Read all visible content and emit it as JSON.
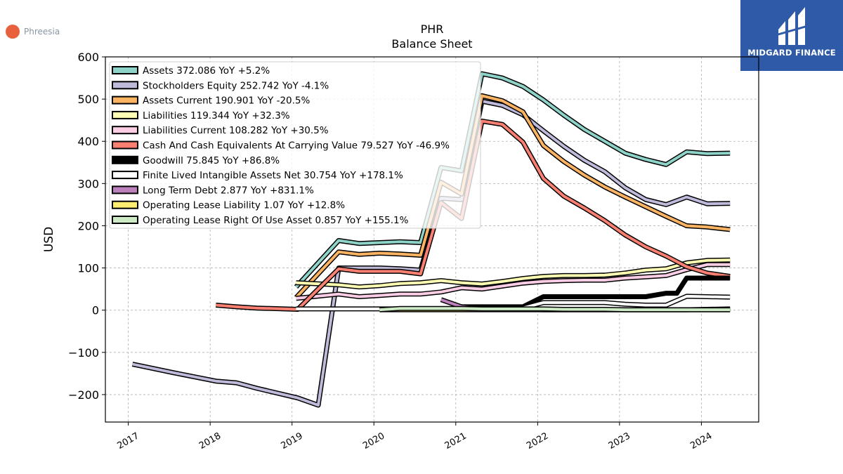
{
  "brand": {
    "left_name": "Phreesia",
    "right_name": "MIDGARD FINANCE",
    "left_color": "#e8603c",
    "right_bg": "#2f5aa8"
  },
  "chart_data": {
    "type": "line",
    "title": "PHR",
    "subtitle": "Balance  Sheet",
    "xlabel": "",
    "ylabel": "USD",
    "xlim": [
      2016.72,
      2024.7
    ],
    "ylim": [
      -265,
      600
    ],
    "yticks": [
      -200,
      -100,
      0,
      100,
      200,
      300,
      400,
      500,
      600
    ],
    "ytick_labels": [
      "−200",
      "−100",
      "0",
      "100",
      "200",
      "300",
      "400",
      "500",
      "600"
    ],
    "xticks": [
      2017,
      2018,
      2019,
      2020,
      2021,
      2022,
      2023,
      2024
    ],
    "xtick_labels": [
      "2017",
      "2018",
      "2019",
      "2020",
      "2021",
      "2022",
      "2023",
      "2024"
    ],
    "grid": true,
    "legend_position": "top-left",
    "series": [
      {
        "name": "Assets  372.086 YoY +5.2%",
        "color": "#8dd3c7",
        "x": [
          2019.05,
          2019.57,
          2019.82,
          2020.07,
          2020.32,
          2020.57,
          2020.82,
          2021.07,
          2021.32,
          2021.57,
          2021.82,
          2022.07,
          2022.32,
          2022.57,
          2022.82,
          2023.07,
          2023.32,
          2023.57,
          2023.82,
          2024.07,
          2024.35
        ],
        "y": [
          55,
          165,
          158,
          160,
          162,
          160,
          338,
          330,
          560,
          550,
          530,
          498,
          462,
          428,
          400,
          372,
          357,
          345,
          375,
          371,
          372
        ]
      },
      {
        "name": "Stockholders Equity  252.742 YoY -4.1%",
        "color": "#bebada",
        "x": [
          2017.05,
          2017.55,
          2018.07,
          2018.32,
          2018.57,
          2019.07,
          2019.32,
          2019.57,
          2019.82,
          2020.07,
          2020.32,
          2020.57,
          2020.82,
          2021.07,
          2021.32,
          2021.57,
          2021.82,
          2022.07,
          2022.32,
          2022.57,
          2022.82,
          2023.07,
          2023.32,
          2023.57,
          2023.82,
          2024.07,
          2024.35
        ],
        "y": [
          -128,
          -148,
          -168,
          -172,
          -185,
          -208,
          -225,
          100,
          100,
          100,
          98,
          95,
          265,
          262,
          495,
          485,
          463,
          425,
          388,
          355,
          328,
          290,
          262,
          250,
          268,
          252,
          253
        ]
      },
      {
        "name": "Assets Current  190.901 YoY -20.5%",
        "color": "#fdb462",
        "x": [
          2019.05,
          2019.57,
          2019.82,
          2020.07,
          2020.32,
          2020.57,
          2020.82,
          2021.07,
          2021.32,
          2021.57,
          2021.82,
          2022.07,
          2022.32,
          2022.57,
          2022.82,
          2023.07,
          2023.32,
          2023.57,
          2023.82,
          2024.07,
          2024.35
        ],
        "y": [
          30,
          138,
          132,
          135,
          133,
          130,
          303,
          275,
          508,
          496,
          470,
          390,
          352,
          320,
          292,
          268,
          245,
          222,
          200,
          197,
          191
        ]
      },
      {
        "name": "Liabilities  119.344 YoY +32.3%",
        "color": "#ffffb3",
        "x": [
          2019.05,
          2019.57,
          2019.82,
          2020.07,
          2020.32,
          2020.57,
          2020.82,
          2021.07,
          2021.32,
          2021.57,
          2021.82,
          2022.07,
          2022.32,
          2022.57,
          2022.82,
          2023.07,
          2023.32,
          2023.57,
          2023.82,
          2024.07,
          2024.35
        ],
        "y": [
          65,
          60,
          55,
          58,
          63,
          65,
          70,
          65,
          62,
          68,
          75,
          80,
          82,
          82,
          83,
          88,
          95,
          98,
          112,
          118,
          119
        ]
      },
      {
        "name": "Liabilities Current  108.282 YoY +30.5%",
        "color": "#fccde5",
        "x": [
          2019.05,
          2019.57,
          2019.82,
          2020.07,
          2020.32,
          2020.57,
          2020.82,
          2021.07,
          2021.32,
          2021.57,
          2021.82,
          2022.07,
          2022.32,
          2022.57,
          2022.82,
          2023.07,
          2023.32,
          2023.57,
          2023.82,
          2024.07,
          2024.35
        ],
        "y": [
          28,
          38,
          32,
          35,
          38,
          38,
          43,
          53,
          50,
          57,
          64,
          68,
          70,
          71,
          71,
          76,
          79,
          82,
          96,
          108,
          108
        ]
      },
      {
        "name": "Cash And Cash Equivalents At Carrying Value  79.527 YoY -46.9%",
        "color": "#fb8072",
        "x": [
          2018.07,
          2018.32,
          2018.57,
          2019.07,
          2019.57,
          2019.82,
          2020.07,
          2020.32,
          2020.57,
          2020.82,
          2021.07,
          2021.32,
          2021.57,
          2021.82,
          2022.07,
          2022.32,
          2022.57,
          2022.82,
          2023.07,
          2023.32,
          2023.57,
          2023.82,
          2024.07,
          2024.35
        ],
        "y": [
          12,
          8,
          5,
          2,
          98,
          92,
          92,
          92,
          86,
          255,
          217,
          448,
          440,
          398,
          312,
          270,
          242,
          212,
          178,
          150,
          128,
          103,
          88,
          80
        ]
      },
      {
        "name": "Goodwill  75.845 YoY +86.8%",
        "color": "#000000",
        "x": [
          2021.07,
          2021.32,
          2021.57,
          2021.82,
          2022.07,
          2022.32,
          2022.57,
          2022.82,
          2023.07,
          2023.32,
          2023.57,
          2023.7,
          2023.82,
          2024.07,
          2024.35
        ],
        "y": [
          8,
          8,
          8,
          8,
          32,
          32,
          32,
          32,
          32,
          32,
          40,
          40,
          76,
          76,
          76
        ]
      },
      {
        "name": "Finite Lived Intangible Assets Net  30.754 YoY +178.1%",
        "color": "#ffffff",
        "x": [
          2019.05,
          2019.57,
          2019.82,
          2020.07,
          2020.32,
          2020.57,
          2020.82,
          2021.07,
          2021.32,
          2021.57,
          2021.82,
          2022.07,
          2022.32,
          2022.57,
          2022.82,
          2023.07,
          2023.32,
          2023.57,
          2023.82,
          2024.07,
          2024.35
        ],
        "y": [
          3,
          3,
          3,
          3,
          3,
          3,
          3,
          5,
          5,
          5,
          5,
          18,
          18,
          18,
          18,
          14,
          12,
          12,
          33,
          32,
          31
        ]
      },
      {
        "name": "Long Term Debt  2.877 YoY +831.1%",
        "color": "#bc80bd",
        "x": [
          2020.82,
          2021.07,
          2021.32,
          2021.57,
          2021.82,
          2022.07,
          2022.32,
          2022.57,
          2022.82,
          2023.07,
          2023.32,
          2023.57,
          2023.82,
          2024.07,
          2024.35
        ],
        "y": [
          25,
          8,
          3,
          2,
          2,
          1,
          1,
          1,
          1,
          1,
          1,
          1,
          1,
          2,
          3
        ]
      },
      {
        "name": "Operating Lease Liability  1.07 YoY +12.8%",
        "color": "#ffed6f",
        "x": [
          2020.07,
          2020.32,
          2020.57,
          2020.82,
          2021.07,
          2021.32,
          2021.57,
          2021.82,
          2022.07,
          2022.32,
          2022.57,
          2022.82,
          2023.07,
          2023.32,
          2023.57,
          2023.82,
          2024.07,
          2024.35
        ],
        "y": [
          1,
          1,
          1,
          1,
          1,
          1,
          1,
          1,
          1,
          1,
          1,
          1,
          1,
          1,
          1,
          1,
          1,
          1
        ]
      },
      {
        "name": "Operating Lease Right Of Use Asset  0.857 YoY +155.1%",
        "color": "#ccebc5",
        "x": [
          2020.07,
          2020.32,
          2020.57,
          2020.82,
          2021.07,
          2021.32,
          2021.57,
          2021.82,
          2022.07,
          2022.32,
          2022.57,
          2022.82,
          2023.07,
          2023.32,
          2023.57,
          2023.82,
          2024.07,
          2024.35
        ],
        "y": [
          1,
          4,
          4,
          4,
          4,
          3,
          3,
          3,
          3,
          2,
          2,
          2,
          1,
          1,
          1,
          1,
          1,
          1
        ]
      }
    ]
  }
}
